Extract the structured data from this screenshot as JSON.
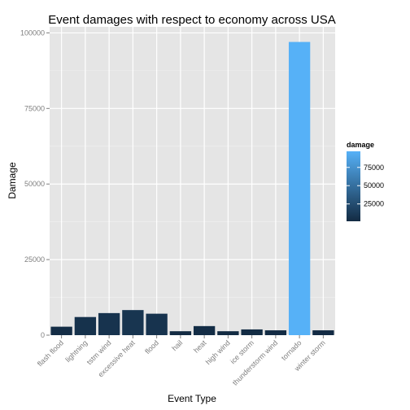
{
  "chart_data": {
    "type": "bar",
    "title": "Event damages with respect to economy across USA",
    "xlabel": "Event Type",
    "ylabel": "Damage",
    "categories": [
      "flash flood",
      "lightning",
      "tstm wind",
      "excessive heat",
      "flood",
      "hail",
      "heat",
      "high wind",
      "ice storm",
      "thunderstorm wind",
      "tornado",
      "winter storm"
    ],
    "values": [
      2800,
      6000,
      7300,
      8300,
      7100,
      1300,
      3000,
      1300,
      1900,
      1600,
      97000,
      1600
    ],
    "ylim": [
      0,
      102000
    ],
    "yticks": [
      0,
      25000,
      50000,
      75000,
      100000
    ],
    "ytick_labels": [
      "0",
      "25000",
      "50000",
      "75000",
      "100000"
    ],
    "grid": true,
    "color_scale": {
      "low": "#132B43",
      "high": "#56B1F7"
    },
    "legend": {
      "title": "damage",
      "position": "right",
      "ticks": [
        25000,
        50000,
        75000
      ],
      "tick_labels": [
        "25000",
        "50000",
        "75000"
      ]
    }
  }
}
